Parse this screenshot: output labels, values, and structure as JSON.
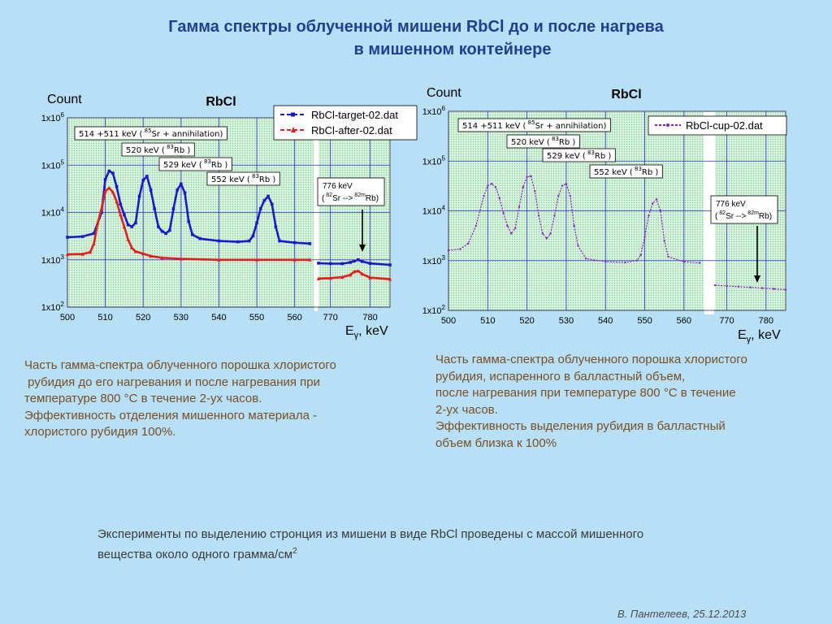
{
  "header": {
    "title_line1": "Гамма спектры облученной мишени RbCl до и после нагрева",
    "title_line2": "в мишенном контейнере"
  },
  "colors": {
    "blue_series": "#1a1acc",
    "red_series": "#e41e1e",
    "purple_series": "#8a1fc4",
    "plot_background": "#bfe9cc",
    "grid": "#2a2adf",
    "caption_text": "#7a4e23",
    "title_text": "#1f3f8f"
  },
  "chart_data": [
    {
      "type": "line",
      "title": "RbCl",
      "ylabel": "Count",
      "xlabel": "Eγ, keV",
      "xlabel_base": "E",
      "xlabel_sub": "γ",
      "xlabel_unit": ", keV",
      "y_scale": "log",
      "ylim": [
        100,
        1000000
      ],
      "y_ticks": [
        {
          "value": 100,
          "base": "1x10",
          "exp": "2"
        },
        {
          "value": 1000,
          "base": "1x10",
          "exp": "3"
        },
        {
          "value": 10000,
          "base": "1x10",
          "exp": "4"
        },
        {
          "value": 100000,
          "base": "1x10",
          "exp": "5"
        },
        {
          "value": 1000000,
          "base": "1x10",
          "exp": "6"
        }
      ],
      "x_segments": [
        {
          "xlim": [
            500,
            565
          ],
          "ticks": [
            "500",
            "510",
            "520",
            "530",
            "540",
            "550",
            "560"
          ]
        },
        {
          "xlim": [
            767,
            785
          ],
          "ticks": [
            "770",
            "780"
          ]
        }
      ],
      "grid": true,
      "legend_position": "top-right",
      "series": [
        {
          "name": "RbCl-target-02.dat",
          "color": "blue",
          "points": [
            [
              500,
              3000
            ],
            [
              504,
              3100
            ],
            [
              507,
              3600
            ],
            [
              509,
              10000
            ],
            [
              510,
              50000
            ],
            [
              511,
              75000
            ],
            [
              512,
              68000
            ],
            [
              513,
              35000
            ],
            [
              514,
              15000
            ],
            [
              515,
              9000
            ],
            [
              516,
              5500
            ],
            [
              517,
              5000
            ],
            [
              518,
              6000
            ],
            [
              519,
              22000
            ],
            [
              520,
              48000
            ],
            [
              521,
              58000
            ],
            [
              522,
              30000
            ],
            [
              523,
              12000
            ],
            [
              524,
              5000
            ],
            [
              525,
              4000
            ],
            [
              526,
              3600
            ],
            [
              527,
              4200
            ],
            [
              528,
              12000
            ],
            [
              529,
              30000
            ],
            [
              530,
              40000
            ],
            [
              531,
              26000
            ],
            [
              532,
              6500
            ],
            [
              533,
              3400
            ],
            [
              535,
              2800
            ],
            [
              540,
              2500
            ],
            [
              545,
              2400
            ],
            [
              548,
              2500
            ],
            [
              549,
              3200
            ],
            [
              550,
              6000
            ],
            [
              551,
              12000
            ],
            [
              552,
              18000
            ],
            [
              553,
              22000
            ],
            [
              554,
              15000
            ],
            [
              555,
              5000
            ],
            [
              556,
              2500
            ],
            [
              560,
              2300
            ],
            [
              564,
              2200
            ],
            [
              767,
              850
            ],
            [
              770,
              830
            ],
            [
              773,
              830
            ],
            [
              775,
              880
            ],
            [
              776,
              940
            ],
            [
              777,
              1000
            ],
            [
              778,
              920
            ],
            [
              780,
              840
            ],
            [
              785,
              780
            ]
          ]
        },
        {
          "name": "RbCl-after-02.dat",
          "color": "red",
          "points": [
            [
              500,
              1300
            ],
            [
              504,
              1320
            ],
            [
              506,
              1450
            ],
            [
              507,
              2200
            ],
            [
              508,
              6000
            ],
            [
              509,
              12000
            ],
            [
              510,
              28000
            ],
            [
              511,
              33000
            ],
            [
              512,
              27000
            ],
            [
              513,
              17000
            ],
            [
              514,
              9000
            ],
            [
              515,
              5000
            ],
            [
              516,
              2700
            ],
            [
              517,
              1800
            ],
            [
              518,
              1500
            ],
            [
              520,
              1350
            ],
            [
              522,
              1200
            ],
            [
              525,
              1100
            ],
            [
              530,
              1050
            ],
            [
              540,
              1000
            ],
            [
              550,
              1000
            ],
            [
              560,
              1000
            ],
            [
              564,
              1000
            ],
            [
              767,
              400
            ],
            [
              770,
              410
            ],
            [
              773,
              430
            ],
            [
              775,
              480
            ],
            [
              776,
              560
            ],
            [
              777,
              580
            ],
            [
              778,
              500
            ],
            [
              780,
              420
            ],
            [
              785,
              390
            ]
          ]
        }
      ],
      "annotations": [
        {
          "text": "514 +511 keV ( 85Sr + annihilation)",
          "pre": "514 +511 keV (",
          "iso": "85",
          "post": "Sr + annihilation)"
        },
        {
          "text": "520 keV ( 83Rb )",
          "pre": "520 keV (",
          "iso": "83",
          "post": "Rb )"
        },
        {
          "text": "529 keV ( 83Rb )",
          "pre": "529 keV (",
          "iso": "83",
          "post": "Rb )"
        },
        {
          "text": "552 keV ( 83Rb )",
          "pre": "552 keV (",
          "iso": "83",
          "post": "Rb )"
        },
        {
          "text": "776 keV",
          "pre": "776 keV",
          "iso": "",
          "post": ""
        },
        {
          "text": "( 82Sr --> 82mRb)",
          "pre": "(",
          "iso": "82",
          "post": "Sr -->",
          "iso2": "82m",
          "post2": "Rb)"
        }
      ]
    },
    {
      "type": "line",
      "title": "RbCl",
      "ylabel": "Count",
      "xlabel": "Eγ, keV",
      "xlabel_base": "E",
      "xlabel_sub": "γ",
      "xlabel_unit": ", keV",
      "y_scale": "log",
      "ylim": [
        100,
        1000000
      ],
      "y_ticks": [
        {
          "value": 100,
          "base": "1x10",
          "exp": "2"
        },
        {
          "value": 1000,
          "base": "1x10",
          "exp": "3"
        },
        {
          "value": 10000,
          "base": "1x10",
          "exp": "4"
        },
        {
          "value": 100000,
          "base": "1x10",
          "exp": "5"
        },
        {
          "value": 1000000,
          "base": "1x10",
          "exp": "6"
        }
      ],
      "x_segments": [
        {
          "xlim": [
            500,
            565
          ],
          "ticks": [
            "500",
            "510",
            "520",
            "530",
            "540",
            "550",
            "560"
          ]
        },
        {
          "xlim": [
            767,
            785
          ],
          "ticks": [
            "770",
            "780"
          ]
        }
      ],
      "grid": true,
      "legend_position": "top-right",
      "series": [
        {
          "name": "RbCl-cup-02.dat",
          "color": "purple",
          "points": [
            [
              500,
              1600
            ],
            [
              503,
              1700
            ],
            [
              505,
              2200
            ],
            [
              507,
              5000
            ],
            [
              509,
              20000
            ],
            [
              510,
              32000
            ],
            [
              511,
              35000
            ],
            [
              512,
              30000
            ],
            [
              513,
              18000
            ],
            [
              514,
              9000
            ],
            [
              515,
              5000
            ],
            [
              516,
              3500
            ],
            [
              517,
              4500
            ],
            [
              518,
              12000
            ],
            [
              519,
              30000
            ],
            [
              520,
              48000
            ],
            [
              521,
              50000
            ],
            [
              522,
              25000
            ],
            [
              523,
              8000
            ],
            [
              524,
              3500
            ],
            [
              525,
              2800
            ],
            [
              526,
              3500
            ],
            [
              527,
              8000
            ],
            [
              528,
              20000
            ],
            [
              529,
              32000
            ],
            [
              530,
              35000
            ],
            [
              531,
              20000
            ],
            [
              532,
              5000
            ],
            [
              533,
              2000
            ],
            [
              535,
              1100
            ],
            [
              540,
              950
            ],
            [
              545,
              920
            ],
            [
              548,
              1000
            ],
            [
              549,
              1300
            ],
            [
              550,
              3000
            ],
            [
              551,
              8000
            ],
            [
              552,
              14000
            ],
            [
              553,
              17000
            ],
            [
              554,
              10000
            ],
            [
              555,
              2500
            ],
            [
              556,
              1200
            ],
            [
              560,
              950
            ],
            [
              564,
              900
            ],
            [
              767,
              320
            ],
            [
              770,
              310
            ],
            [
              773,
              300
            ],
            [
              776,
              290
            ],
            [
              779,
              280
            ],
            [
              782,
              270
            ],
            [
              785,
              260
            ]
          ]
        }
      ],
      "annotations": [
        {
          "text": "514 +511 keV ( 85Sr + annihilation)",
          "pre": "514 +511 keV (",
          "iso": "85",
          "post": "Sr + annihilation)"
        },
        {
          "text": "520 keV ( 83Rb )",
          "pre": "520 keV (",
          "iso": "83",
          "post": "Rb )"
        },
        {
          "text": "529 keV ( 83Rb )",
          "pre": "529 keV (",
          "iso": "83",
          "post": "Rb )"
        },
        {
          "text": "552 keV ( 83Rb )",
          "pre": "552 keV (",
          "iso": "83",
          "post": "Rb )"
        },
        {
          "text": "776 keV",
          "pre": "776 keV",
          "iso": "",
          "post": ""
        },
        {
          "text": "( 82Sr --> 82mRb)",
          "pre": "(",
          "iso": "82",
          "post": "Sr -->",
          "iso2": "82m",
          "post2": "Rb)"
        }
      ]
    }
  ],
  "captions": {
    "left": [
      "Часть гамма-спектра облученного порошка хлористого",
      " рубидия до его нагревания и после нагревания при",
      "температуре 800 °С в течение 2-ух часов.",
      "Эффективность отделения мишенного материала -",
      "хлористого рубидия 100%."
    ],
    "right": [
      "Часть гамма-спектра облученного порошка хлористого",
      "рубидия, испаренного в балластный объем,",
      "после нагревания при температуре 800 °С в течение",
      "2-ух часов.",
      "Эффективность выделения рубидия в балластный",
      "объем близка к 100%"
    ],
    "bottom_line1": "Эксперименты по выделению стронция из мишени в виде RbCl проведены с массой мишенного",
    "bottom_line2": "вещества около одного грамма/см",
    "bottom_line2_sup": "2"
  },
  "signature": "В. Пантелеев, 25.12.2013"
}
